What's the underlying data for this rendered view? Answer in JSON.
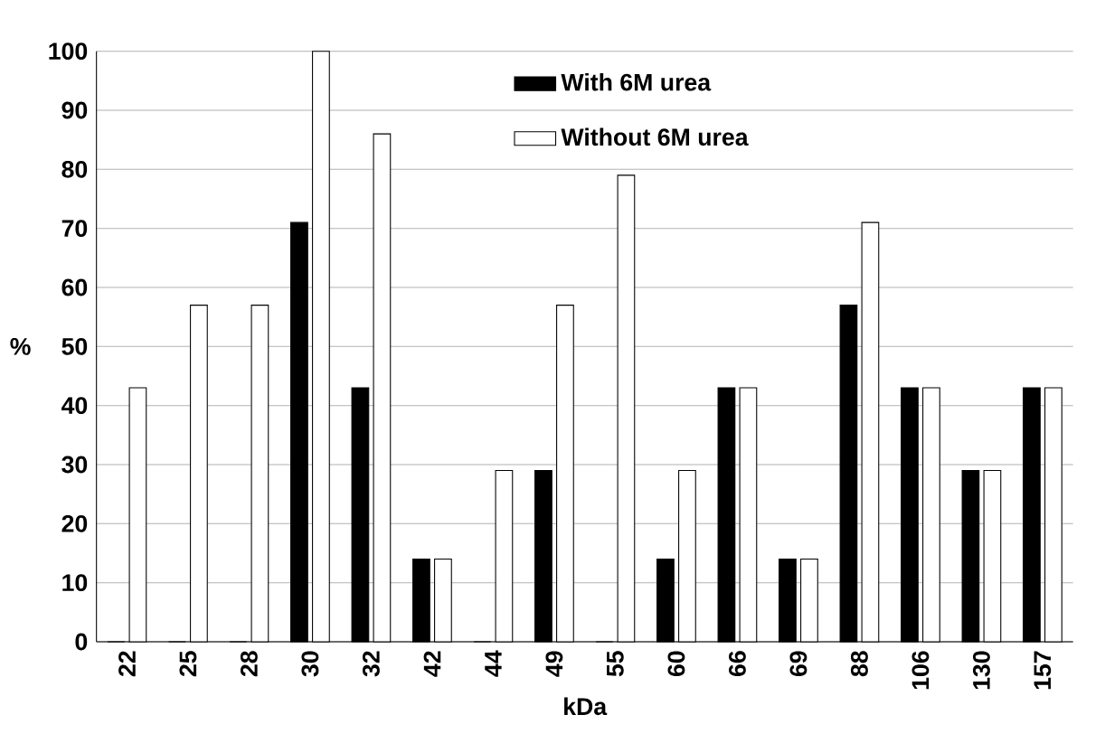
{
  "chart_data": {
    "type": "bar",
    "xlabel": "kDa",
    "ylabel": "%",
    "categories": [
      "22",
      "25",
      "28",
      "30",
      "32",
      "42",
      "44",
      "49",
      "55",
      "60",
      "66",
      "69",
      "88",
      "106",
      "130",
      "157"
    ],
    "series": [
      {
        "name": "With 6M urea",
        "color": "#000000",
        "values": [
          0,
          0,
          0,
          71,
          43,
          14,
          0,
          29,
          0,
          14,
          43,
          14,
          57,
          43,
          29,
          43
        ]
      },
      {
        "name": "Without  6M urea",
        "color": "#ffffff",
        "values": [
          43,
          57,
          57,
          100,
          86,
          14,
          29,
          57,
          79,
          29,
          43,
          14,
          71,
          43,
          29,
          43
        ]
      }
    ],
    "ylim": [
      0,
      100
    ],
    "yticks": [
      0,
      10,
      20,
      30,
      40,
      50,
      60,
      70,
      80,
      90,
      100
    ],
    "grid": "y",
    "legend": "top"
  }
}
